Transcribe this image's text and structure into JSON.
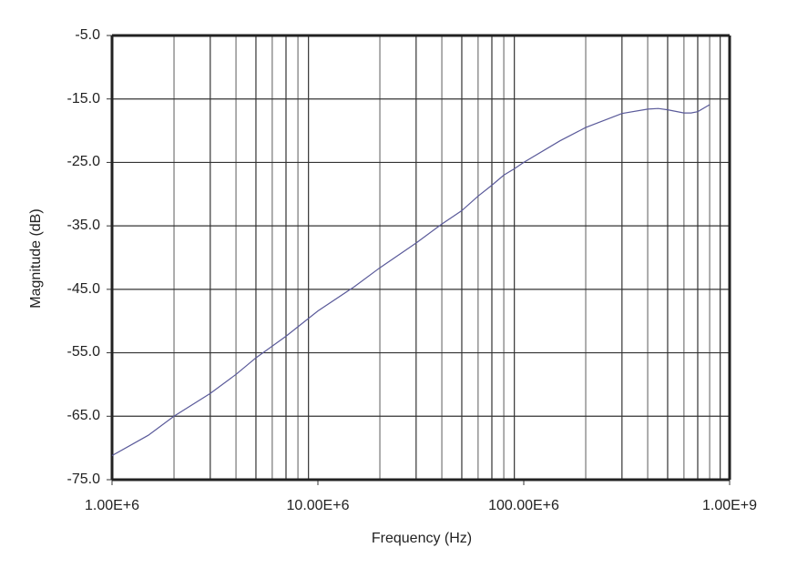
{
  "chart_data": {
    "type": "line",
    "title": "",
    "xlabel": "Frequency (Hz)",
    "ylabel": "Magnitude (dB)",
    "xscale": "log",
    "xlim": [
      1000000,
      1000000000
    ],
    "ylim": [
      -75.0,
      -5.0
    ],
    "grid": true,
    "legend": "none",
    "x_tick_labels": [
      "1.00E+6",
      "10.00E+6",
      "100.00E+6",
      "1.00E+9"
    ],
    "y_tick_labels": [
      "-5.0",
      "-15.0",
      "-25.0",
      "-35.0",
      "-45.0",
      "-55.0",
      "-65.0",
      "-75.0"
    ],
    "line_color": "#5a5a9a",
    "series": [
      {
        "name": "Magnitude",
        "x": [
          1000000,
          1500000,
          2000000,
          3000000,
          4000000,
          5000000,
          7000000,
          10000000,
          15000000,
          20000000,
          30000000,
          40000000,
          50000000,
          60000000,
          70000000,
          80000000,
          90000000,
          100000000,
          150000000,
          200000000,
          300000000,
          400000000,
          450000000,
          500000000,
          600000000,
          650000000,
          700000000,
          800000000
        ],
        "values": [
          -71.2,
          -68.0,
          -65.0,
          -61.4,
          -58.4,
          -55.8,
          -52.4,
          -48.4,
          -44.6,
          -41.6,
          -37.7,
          -34.7,
          -32.6,
          -30.3,
          -28.6,
          -27.0,
          -26.0,
          -25.0,
          -21.6,
          -19.5,
          -17.3,
          -16.6,
          -16.5,
          -16.7,
          -17.2,
          -17.2,
          -17.0,
          -15.9
        ]
      }
    ]
  },
  "axes": {
    "x_title": "Frequency (Hz)",
    "y_title": "Magnitude (dB)",
    "x_ticks": [
      "1.00E+6",
      "10.00E+6",
      "100.00E+6",
      "1.00E+9"
    ],
    "y_ticks": [
      "-5.0",
      "-15.0",
      "-25.0",
      "-35.0",
      "-45.0",
      "-55.0",
      "-65.0",
      "-75.0"
    ]
  }
}
